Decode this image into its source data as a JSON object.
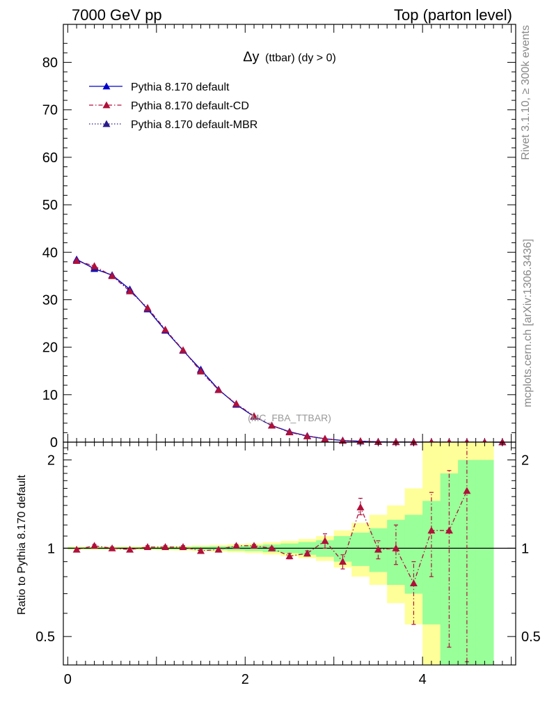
{
  "header": {
    "left": "7000 GeV pp",
    "right": "Top (parton level)"
  },
  "side": {
    "rivet": "Rivet 3.1.10, ≥ 300k events",
    "mcplots": "mcplots.cern.ch [arXiv:1306.3436]"
  },
  "colors": {
    "default": "#0000cc",
    "cd": "#b0103a",
    "mbr": "#2a1a8a",
    "band_inner": "#99ff99",
    "band_outer": "#ffff99"
  },
  "chart_data": [
    {
      "type": "line",
      "title": "Δy (ttbar) (dy > 0)",
      "title_main": "Δy",
      "title_sub": "(ttbar) (dy > 0)",
      "watermark": "(MC_FBA_TTBAR)",
      "xlim": [
        -0.05,
        5.05
      ],
      "ylim": [
        0,
        88
      ],
      "yticks": [
        0,
        10,
        20,
        30,
        40,
        50,
        60,
        70,
        80
      ],
      "legend_position": "top-left",
      "x": [
        0.1,
        0.3,
        0.5,
        0.7,
        0.9,
        1.1,
        1.3,
        1.5,
        1.7,
        1.9,
        2.1,
        2.3,
        2.5,
        2.7,
        2.9,
        3.1,
        3.3,
        3.5,
        3.7,
        3.9,
        4.1,
        4.3,
        4.5,
        4.7,
        4.9
      ],
      "series": [
        {
          "name": "Pythia 8.170 default",
          "style": "solid",
          "values": [
            38.5,
            36.5,
            35.2,
            32.2,
            28.0,
            23.5,
            19.3,
            15.3,
            11.1,
            7.9,
            5.4,
            3.5,
            2.2,
            1.3,
            0.7,
            0.35,
            0.17,
            0.08,
            0.04,
            0.02,
            0.01,
            0.005,
            0.003,
            0.001,
            0.0005
          ]
        },
        {
          "name": "Pythia 8.170 default-CD",
          "style": "dashdot",
          "values": [
            38.2,
            37.1,
            35.0,
            31.8,
            28.3,
            23.7,
            19.4,
            14.9,
            11.0,
            8.1,
            5.5,
            3.5,
            2.1,
            1.25,
            0.74,
            0.32,
            0.23,
            0.08,
            0.04,
            0.015,
            0.012,
            0.006,
            0.005,
            0.001,
            0.0005
          ]
        },
        {
          "name": "Pythia 8.170 default-MBR",
          "style": "dotted",
          "values": [
            38.3,
            36.7,
            35.1,
            32.0,
            28.1,
            23.6,
            19.3,
            15.1,
            11.0,
            8.0,
            5.4,
            3.5,
            2.2,
            1.3,
            0.7,
            0.34,
            0.18,
            0.08,
            0.04,
            0.02,
            0.01,
            0.005,
            0.003,
            0.001,
            0.0005
          ]
        }
      ]
    },
    {
      "type": "line",
      "ylabel": "Ratio to Pythia 8.170 default",
      "xlim": [
        -0.05,
        5.05
      ],
      "ylim": [
        0.4,
        2.3
      ],
      "log_y": true,
      "yticks": [
        0.5,
        1,
        2
      ],
      "xticks": [
        0,
        2,
        4
      ],
      "x": [
        0.1,
        0.3,
        0.5,
        0.7,
        0.9,
        1.1,
        1.3,
        1.5,
        1.7,
        1.9,
        2.1,
        2.3,
        2.5,
        2.7,
        2.9,
        3.1,
        3.3,
        3.5,
        3.7,
        3.9,
        4.1,
        4.3,
        4.5
      ],
      "cd_ratio": [
        0.99,
        1.02,
        1.0,
        0.99,
        1.01,
        1.01,
        1.01,
        0.98,
        0.99,
        1.02,
        1.02,
        1.0,
        0.94,
        0.96,
        1.06,
        0.9,
        1.38,
        0.99,
        1.0,
        0.76,
        1.15,
        1.15,
        1.57
      ],
      "cd_err_lo": [
        0.98,
        1.01,
        0.99,
        0.98,
        1.0,
        1.0,
        1.0,
        0.97,
        0.98,
        1.01,
        1.01,
        0.99,
        0.92,
        0.94,
        1.0,
        0.85,
        1.3,
        0.92,
        0.88,
        0.55,
        0.8,
        0.46,
        0.41
      ],
      "cd_err_hi": [
        1.0,
        1.03,
        1.01,
        1.0,
        1.02,
        1.02,
        1.02,
        0.99,
        1.0,
        1.03,
        1.03,
        1.01,
        0.96,
        0.98,
        1.12,
        0.95,
        1.48,
        1.06,
        1.2,
        0.9,
        1.55,
        1.84,
        2.3
      ],
      "band_x": [
        0.0,
        0.2,
        0.4,
        0.6,
        0.8,
        1.0,
        1.2,
        1.4,
        1.6,
        1.8,
        2.0,
        2.2,
        2.4,
        2.6,
        2.8,
        3.0,
        3.2,
        3.4,
        3.6,
        3.8,
        4.0,
        4.2,
        4.4,
        4.6,
        4.8
      ],
      "band_inner_lo": [
        0.993,
        0.993,
        0.993,
        0.993,
        0.992,
        0.991,
        0.99,
        0.988,
        0.985,
        0.982,
        0.978,
        0.97,
        0.962,
        0.95,
        0.935,
        0.9,
        0.87,
        0.83,
        0.75,
        0.7,
        0.55,
        0.35,
        0.35,
        0.35
      ],
      "band_inner_hi": [
        1.007,
        1.007,
        1.007,
        1.007,
        1.008,
        1.009,
        1.01,
        1.012,
        1.015,
        1.018,
        1.022,
        1.03,
        1.038,
        1.05,
        1.065,
        1.1,
        1.13,
        1.17,
        1.25,
        1.3,
        1.45,
        1.8,
        2.0,
        2.0
      ],
      "band_outer_lo": [
        0.988,
        0.988,
        0.988,
        0.987,
        0.986,
        0.984,
        0.982,
        0.978,
        0.974,
        0.968,
        0.962,
        0.952,
        0.94,
        0.925,
        0.905,
        0.86,
        0.8,
        0.75,
        0.65,
        0.55,
        0.35,
        0.35,
        0.35,
        0.35
      ],
      "band_outer_hi": [
        1.012,
        1.012,
        1.012,
        1.013,
        1.014,
        1.016,
        1.018,
        1.022,
        1.026,
        1.032,
        1.038,
        1.048,
        1.06,
        1.075,
        1.1,
        1.15,
        1.22,
        1.3,
        1.4,
        1.6,
        2.3,
        2.3,
        2.3,
        2.3
      ]
    }
  ]
}
